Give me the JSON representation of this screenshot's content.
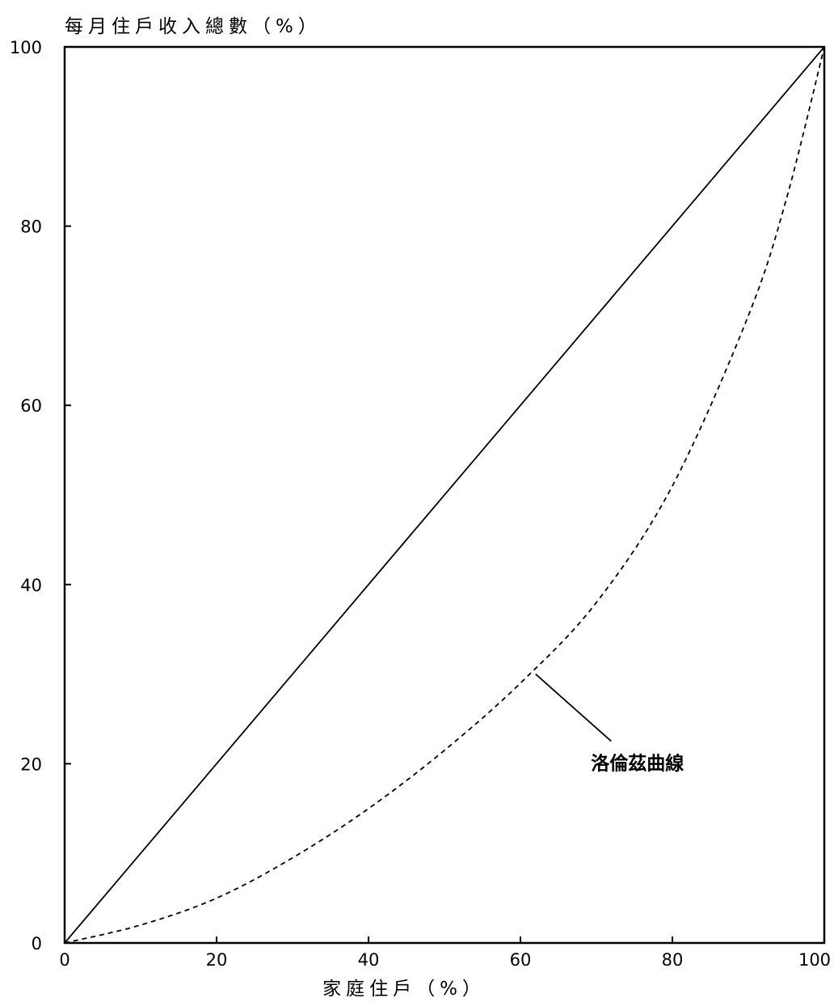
{
  "chart_data": {
    "type": "line",
    "title": "",
    "ylabel": "每月住戶收入總數（%）",
    "xlabel": "家庭住戶（%）",
    "xlim": [
      0,
      100
    ],
    "ylim": [
      0,
      100
    ],
    "x_ticks": [
      0,
      20,
      40,
      60,
      80,
      100
    ],
    "y_ticks": [
      0,
      20,
      40,
      60,
      80,
      100
    ],
    "grid": false,
    "legend": "none",
    "series": [
      {
        "style": "solid",
        "color": "#000000",
        "x": [
          0,
          100
        ],
        "y": [
          0,
          100
        ]
      },
      {
        "style": "dashed",
        "color": "#000000",
        "x": [
          0,
          10,
          20,
          30,
          40,
          50,
          60,
          70,
          80,
          90,
          95,
          100
        ],
        "y": [
          0,
          2,
          5,
          9.5,
          15,
          21.5,
          29,
          38,
          51,
          70,
          83,
          100
        ]
      }
    ],
    "annotations": [
      {
        "text": "洛倫茲曲線",
        "points_to": {
          "x": 62,
          "y": 30
        },
        "label_at": {
          "x": 73,
          "y": 20
        }
      }
    ]
  }
}
